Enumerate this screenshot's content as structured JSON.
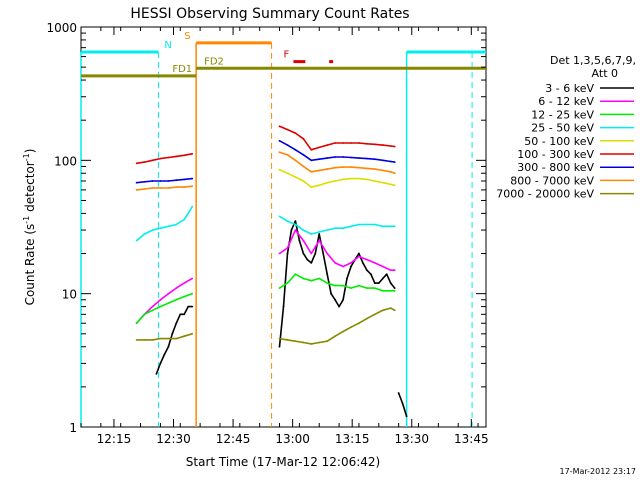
{
  "chart_data": {
    "type": "line",
    "title": "HESSI Observing Summary Count Rates",
    "xlabel": "Start Time (17-Mar-12 12:06:42)",
    "ylabel_main": "Count Rate (s",
    "ylabel_sup1": "-1",
    "ylabel_mid": " detector",
    "ylabel_sup2": "-1",
    "ylabel_end": ")",
    "y_scale": "log",
    "xlim_minutes": [
      0,
      102
    ],
    "ylim": [
      1,
      1000
    ],
    "x_ticks": [
      {
        "label": "12:15",
        "t": 8.3
      },
      {
        "label": "12:30",
        "t": 23.3
      },
      {
        "label": "12:45",
        "t": 38.3
      },
      {
        "label": "13:00",
        "t": 53.3
      },
      {
        "label": "13:15",
        "t": 68.3
      },
      {
        "label": "13:30",
        "t": 83.3
      },
      {
        "label": "13:45",
        "t": 98.3
      }
    ],
    "y_ticks": [
      {
        "label": "1",
        "v": 1
      },
      {
        "label": "10",
        "v": 10
      },
      {
        "label": "100",
        "v": 100
      },
      {
        "label": "1000",
        "v": 1000
      }
    ],
    "legend_title": [
      "Det 1,3,5,6,7,9,",
      "Att 0"
    ],
    "legend_position": "right",
    "series": [
      {
        "name": "3 - 6 keV",
        "color": "#000000",
        "segments": [
          [
            [
              19,
              2.5
            ],
            [
              20,
              3
            ],
            [
              21,
              3.5
            ],
            [
              22,
              4
            ],
            [
              23,
              5
            ],
            [
              24,
              6
            ],
            [
              25,
              7
            ],
            [
              26,
              7
            ],
            [
              27,
              8
            ],
            [
              28,
              8
            ]
          ],
          [
            [
              50,
              4
            ],
            [
              51,
              8
            ],
            [
              52,
              20
            ],
            [
              53,
              30
            ],
            [
              54,
              35
            ],
            [
              55,
              25
            ],
            [
              56,
              20
            ],
            [
              57,
              18
            ],
            [
              58,
              17
            ],
            [
              59,
              20
            ],
            [
              60,
              28
            ],
            [
              61,
              20
            ],
            [
              62,
              14
            ],
            [
              63,
              10
            ],
            [
              64,
              9
            ],
            [
              65,
              8
            ],
            [
              66,
              9
            ],
            [
              67,
              13
            ],
            [
              68,
              16
            ],
            [
              69,
              18
            ],
            [
              70,
              20
            ],
            [
              71,
              17
            ],
            [
              72,
              15
            ],
            [
              73,
              14
            ],
            [
              74,
              12
            ],
            [
              75,
              12
            ],
            [
              76,
              13
            ],
            [
              77,
              14
            ],
            [
              78,
              12
            ],
            [
              79,
              11
            ]
          ],
          [
            [
              80,
              1.8
            ],
            [
              81,
              1.5
            ],
            [
              82,
              1.2
            ]
          ]
        ]
      },
      {
        "name": "6 - 12 keV",
        "color": "#ff00ff",
        "segments": [
          [
            [
              14,
              6
            ],
            [
              16,
              7
            ],
            [
              18,
              8
            ],
            [
              20,
              9
            ],
            [
              22,
              10
            ],
            [
              24,
              11
            ],
            [
              26,
              12
            ],
            [
              28,
              13
            ]
          ],
          [
            [
              50,
              20
            ],
            [
              52,
              22
            ],
            [
              54,
              30
            ],
            [
              56,
              25
            ],
            [
              58,
              20
            ],
            [
              60,
              25
            ],
            [
              62,
              20
            ],
            [
              64,
              17
            ],
            [
              66,
              16
            ],
            [
              68,
              17
            ],
            [
              70,
              19
            ],
            [
              72,
              18
            ],
            [
              74,
              17
            ],
            [
              76,
              16
            ],
            [
              78,
              15
            ],
            [
              79,
              15
            ]
          ]
        ]
      },
      {
        "name": "12 - 25 keV",
        "color": "#00ee00",
        "segments": [
          [
            [
              14,
              6
            ],
            [
              16,
              7
            ],
            [
              18,
              7.5
            ],
            [
              20,
              8
            ],
            [
              22,
              8.5
            ],
            [
              24,
              9
            ],
            [
              26,
              9.5
            ],
            [
              28,
              10
            ]
          ],
          [
            [
              50,
              11
            ],
            [
              52,
              12
            ],
            [
              54,
              14
            ],
            [
              56,
              13
            ],
            [
              58,
              12.5
            ],
            [
              60,
              13
            ],
            [
              62,
              12
            ],
            [
              64,
              11.5
            ],
            [
              66,
              11.5
            ],
            [
              68,
              11
            ],
            [
              70,
              11.5
            ],
            [
              72,
              11
            ],
            [
              74,
              11
            ],
            [
              76,
              10.5
            ],
            [
              78,
              10.5
            ],
            [
              79,
              10.5
            ]
          ]
        ]
      },
      {
        "name": "25 - 50 keV",
        "color": "#00eeee",
        "segments": [
          [
            [
              14,
              25
            ],
            [
              16,
              28
            ],
            [
              18,
              30
            ],
            [
              20,
              31
            ],
            [
              22,
              32
            ],
            [
              24,
              33
            ],
            [
              26,
              36
            ],
            [
              27,
              40
            ],
            [
              28,
              45
            ]
          ],
          [
            [
              50,
              38
            ],
            [
              52,
              35
            ],
            [
              54,
              33
            ],
            [
              56,
              30
            ],
            [
              58,
              28
            ],
            [
              60,
              29
            ],
            [
              62,
              30
            ],
            [
              64,
              31
            ],
            [
              66,
              31
            ],
            [
              68,
              32
            ],
            [
              70,
              33
            ],
            [
              72,
              33
            ],
            [
              74,
              33
            ],
            [
              76,
              32
            ],
            [
              78,
              32
            ],
            [
              79,
              32
            ]
          ]
        ]
      },
      {
        "name": "50 - 100 keV",
        "color": "#dddd00",
        "segments": [
          [
            [
              50,
              85
            ],
            [
              52,
              80
            ],
            [
              54,
              75
            ],
            [
              56,
              70
            ],
            [
              58,
              63
            ],
            [
              60,
              65
            ],
            [
              62,
              68
            ],
            [
              64,
              70
            ],
            [
              66,
              72
            ],
            [
              68,
              73
            ],
            [
              70,
              73
            ],
            [
              72,
              72
            ],
            [
              74,
              70
            ],
            [
              76,
              68
            ],
            [
              78,
              66
            ],
            [
              79,
              65
            ]
          ]
        ]
      },
      {
        "name": "100 - 300 keV",
        "color": "#dd0000",
        "segments": [
          [
            [
              14,
              95
            ],
            [
              16,
              97
            ],
            [
              18,
              100
            ],
            [
              20,
              103
            ],
            [
              22,
              105
            ],
            [
              24,
              107
            ],
            [
              26,
              109
            ],
            [
              28,
              112
            ]
          ],
          [
            [
              50,
              180
            ],
            [
              52,
              170
            ],
            [
              54,
              160
            ],
            [
              56,
              145
            ],
            [
              58,
              120
            ],
            [
              60,
              125
            ],
            [
              62,
              130
            ],
            [
              64,
              135
            ],
            [
              66,
              135
            ],
            [
              68,
              135
            ],
            [
              70,
              135
            ],
            [
              72,
              133
            ],
            [
              74,
              132
            ],
            [
              76,
              130
            ],
            [
              78,
              128
            ],
            [
              79,
              127
            ]
          ]
        ]
      },
      {
        "name": "300 - 800 keV",
        "color": "#0000dd",
        "segments": [
          [
            [
              14,
              68
            ],
            [
              16,
              69
            ],
            [
              18,
              70
            ],
            [
              20,
              70
            ],
            [
              22,
              70
            ],
            [
              24,
              71
            ],
            [
              26,
              72
            ],
            [
              28,
              73
            ]
          ],
          [
            [
              50,
              140
            ],
            [
              52,
              130
            ],
            [
              54,
              120
            ],
            [
              56,
              110
            ],
            [
              58,
              100
            ],
            [
              60,
              102
            ],
            [
              62,
              104
            ],
            [
              64,
              106
            ],
            [
              66,
              106
            ],
            [
              68,
              105
            ],
            [
              70,
              104
            ],
            [
              72,
              103
            ],
            [
              74,
              102
            ],
            [
              76,
              100
            ],
            [
              78,
              98
            ],
            [
              79,
              97
            ]
          ]
        ]
      },
      {
        "name": "800 - 7000 keV",
        "color": "#ff8800",
        "segments": [
          [
            [
              14,
              60
            ],
            [
              16,
              61
            ],
            [
              18,
              62
            ],
            [
              20,
              62
            ],
            [
              22,
              62
            ],
            [
              24,
              63
            ],
            [
              26,
              63
            ],
            [
              28,
              64
            ]
          ],
          [
            [
              50,
              115
            ],
            [
              52,
              110
            ],
            [
              54,
              100
            ],
            [
              56,
              90
            ],
            [
              58,
              82
            ],
            [
              60,
              84
            ],
            [
              62,
              86
            ],
            [
              64,
              88
            ],
            [
              66,
              89
            ],
            [
              68,
              89
            ],
            [
              70,
              88
            ],
            [
              72,
              87
            ],
            [
              74,
              86
            ],
            [
              76,
              84
            ],
            [
              78,
              82
            ],
            [
              79,
              80
            ]
          ]
        ]
      },
      {
        "name": "7000 - 20000 keV",
        "color": "#888800",
        "segments": [
          [
            [
              14,
              4.5
            ],
            [
              16,
              4.5
            ],
            [
              18,
              4.5
            ],
            [
              20,
              4.6
            ],
            [
              22,
              4.6
            ],
            [
              24,
              4.6
            ],
            [
              26,
              4.8
            ],
            [
              28,
              5
            ]
          ],
          [
            [
              50,
              4.6
            ],
            [
              52,
              4.5
            ],
            [
              54,
              4.4
            ],
            [
              56,
              4.3
            ],
            [
              58,
              4.2
            ],
            [
              60,
              4.3
            ],
            [
              62,
              4.4
            ],
            [
              64,
              4.8
            ],
            [
              66,
              5.2
            ],
            [
              68,
              5.6
            ],
            [
              70,
              6.0
            ],
            [
              72,
              6.5
            ],
            [
              74,
              7.0
            ],
            [
              76,
              7.5
            ],
            [
              78,
              7.8
            ],
            [
              79,
              7.5
            ]
          ]
        ]
      }
    ],
    "markers": [
      {
        "label": "N",
        "color": "#00eeee",
        "y": 650,
        "bars": [
          [
            0,
            19.5
          ],
          [
            82,
            102
          ]
        ],
        "vlines_solid": [
          0,
          82
        ],
        "vlines_dashed": [
          19.5,
          98.5
        ],
        "label_t": 21
      },
      {
        "label": "S",
        "color": "#ff8800",
        "y": 760,
        "bars": [
          [
            29,
            48
          ]
        ],
        "vlines_solid": [
          29
        ],
        "vlines_dashed": [
          48
        ],
        "label_t": 26
      },
      {
        "label": "F",
        "color": "#dd0000",
        "y": 550,
        "bars": [
          [
            53.5,
            56.5
          ],
          [
            62.5,
            63.5
          ]
        ],
        "vlines_solid": [],
        "vlines_dashed": [],
        "label_t": 51
      },
      {
        "label": "FD1",
        "color": "#888800",
        "y": 430,
        "bars": [
          [
            0,
            29
          ]
        ],
        "vlines_solid": [],
        "vlines_dashed": [],
        "label_t": 23
      },
      {
        "label": "FD2",
        "color": "#888800",
        "y": 490,
        "bars": [
          [
            29,
            102
          ]
        ],
        "vlines_solid": [],
        "vlines_dashed": [],
        "label_t": 31
      }
    ]
  },
  "footer_timestamp": "17-Mar-2012 23:17"
}
